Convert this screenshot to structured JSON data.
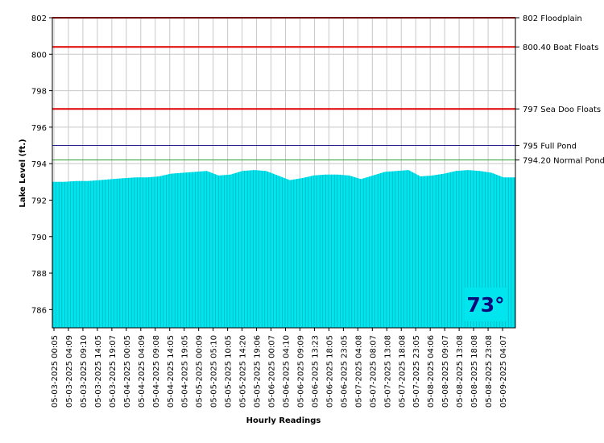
{
  "chart_data": {
    "type": "area",
    "ylabel": "Lake Level (ft.)",
    "xlabel": "Hourly Readings",
    "ylim": [
      785,
      802
    ],
    "yticks": [
      786,
      788,
      790,
      792,
      794,
      796,
      798,
      800,
      802
    ],
    "grid": true,
    "x_tick_labels": [
      "05-03-2025 00:05",
      "05-03-2025 04:09",
      "05-03-2025 09:10",
      "05-03-2025 14:05",
      "05-03-2025 19:07",
      "05-04-2025 00:05",
      "05-04-2025 04:09",
      "05-04-2025 09:08",
      "05-04-2025 14:05",
      "05-04-2025 19:05",
      "05-05-2025 00:09",
      "05-05-2025 05:10",
      "05-05-2025 10:05",
      "05-05-2025 14:20",
      "05-05-2025 19:06",
      "05-06-2025 00:07",
      "05-06-2025 04:10",
      "05-06-2025 09:09",
      "05-06-2025 13:23",
      "05-06-2025 18:05",
      "05-06-2025 23:05",
      "05-07-2025 04:08",
      "05-07-2025 08:07",
      "05-07-2025 13:08",
      "05-07-2025 18:08",
      "05-07-2025 23:05",
      "05-08-2025 04:06",
      "05-08-2025 09:07",
      "05-08-2025 13:08",
      "05-08-2025 18:08",
      "05-08-2025 23:08",
      "05-09-2025 04:07"
    ],
    "series": [
      {
        "fill_color": "#00e5ee",
        "values": [
          793.0,
          793.0,
          793.05,
          793.05,
          793.1,
          793.15,
          793.2,
          793.25,
          793.25,
          793.3,
          793.45,
          793.5,
          793.55,
          793.6,
          793.35,
          793.4,
          793.6,
          793.65,
          793.6,
          793.35,
          793.1,
          793.2,
          793.35,
          793.4,
          793.4,
          793.35,
          793.15,
          793.35,
          793.55,
          793.6,
          793.65,
          793.3,
          793.35,
          793.45,
          793.6,
          793.65,
          793.6,
          793.5,
          793.25,
          793.25
        ]
      }
    ],
    "reference_lines": [
      {
        "value": 802,
        "label": "802 Floodplain",
        "color": "#e00000"
      },
      {
        "value": 800.4,
        "label": "800.40 Boat Floats",
        "color": "#e00000"
      },
      {
        "value": 797,
        "label": "797 Sea Doo Floats",
        "color": "#e00000"
      },
      {
        "value": 795,
        "label": "795 Full Pond",
        "color": "#1a1a8c"
      },
      {
        "value": 794.2,
        "label": "794.20 Normal Pond",
        "color": "#2e9e2e"
      }
    ]
  },
  "temperature": {
    "text": "73°",
    "color": "#0a0a7a",
    "background": "#00e5ee"
  }
}
